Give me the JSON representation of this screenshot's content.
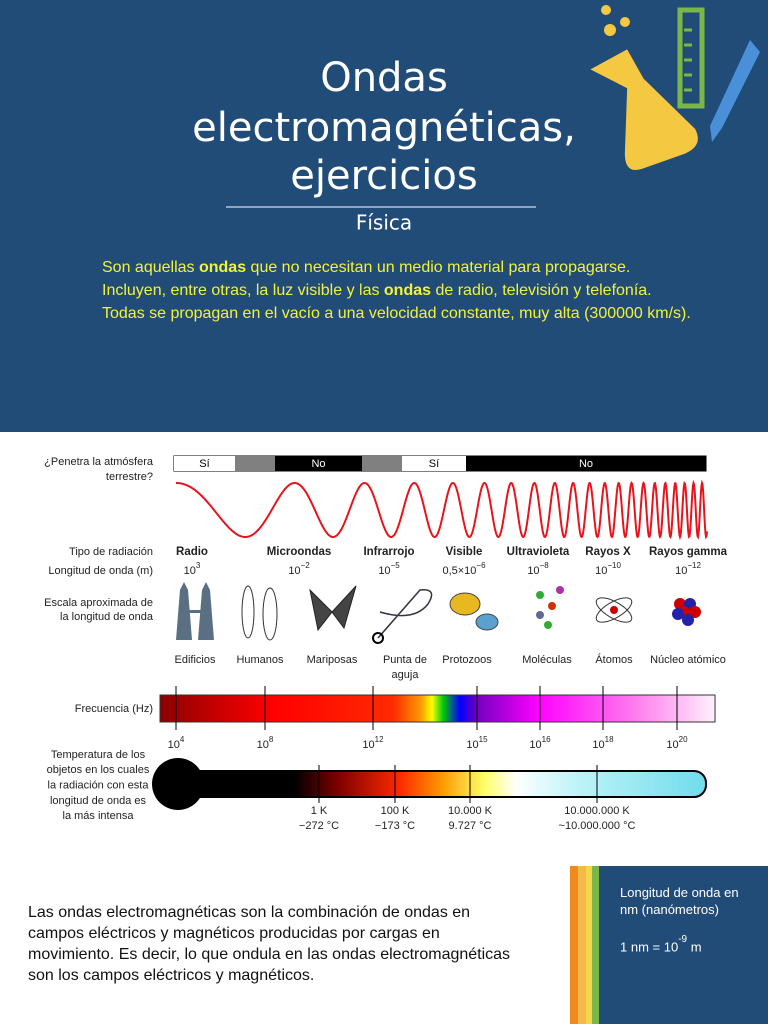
{
  "header": {
    "title_lines": [
      "Ondas",
      "electromagnéticas,",
      "ejercicios"
    ],
    "subtitle": "Física",
    "intro": [
      {
        "text": "Son aquellas "
      },
      {
        "text": "ondas",
        "bold": true
      },
      {
        "text": " que no necesitan un medio material para propagarse. Incluyen, entre otras, la luz visible y las "
      },
      {
        "text": "ondas",
        "bold": true
      },
      {
        "text": " de radio, televisión y telefonía. Todas se propagan en el vacío a una velocidad constante, muy alta (300000 km/s)."
      }
    ]
  },
  "spectrum": {
    "atmosphere_label": [
      "¿Penetra la atmósfera",
      "terrestre?"
    ],
    "atmosphere": [
      "Sí",
      "No",
      "Sí",
      "No"
    ],
    "radiation_type_label": "Tipo de radiación",
    "wavelength_label": "Longitud de onda (m)",
    "radiation": [
      {
        "name": "Radio",
        "base": "10",
        "exp": "3"
      },
      {
        "name": "Microondas",
        "base": "10",
        "exp": "−2"
      },
      {
        "name": "Infrarrojo",
        "base": "10",
        "exp": "−5"
      },
      {
        "name": "Visible",
        "base": "0,5×10",
        "exp": "−6"
      },
      {
        "name": "Ultravioleta",
        "base": "10",
        "exp": "−8"
      },
      {
        "name": "Rayos X",
        "base": "10",
        "exp": "−10"
      },
      {
        "name": "Rayos gamma",
        "base": "10",
        "exp": "−12"
      }
    ],
    "scale_label": [
      "Escala aproximada de",
      "la longitud de onda"
    ],
    "scale_items": [
      [
        "Edificios"
      ],
      [
        "Humanos"
      ],
      [
        "Mariposas"
      ],
      [
        "Punta de",
        "aguja"
      ],
      [
        "Protozoos"
      ],
      [
        "Moléculas"
      ],
      [
        "Átomos"
      ],
      [
        "Núcleo atómico"
      ]
    ],
    "frequency_label": "Frecuencia (Hz)",
    "frequency_ticks": [
      {
        "base": "10",
        "exp": "4"
      },
      {
        "base": "10",
        "exp": "8"
      },
      {
        "base": "10",
        "exp": "12"
      },
      {
        "base": "10",
        "exp": "15"
      },
      {
        "base": "10",
        "exp": "16"
      },
      {
        "base": "10",
        "exp": "18"
      },
      {
        "base": "10",
        "exp": "20"
      }
    ],
    "temperature_label": [
      "Temperatura de los",
      "objetos en los cuales",
      "la radiación con esta",
      "longitud de onda es",
      "la más intensa"
    ],
    "temperatures": [
      {
        "kelvin": "1 K",
        "celsius": "−272 °C"
      },
      {
        "kelvin": "100 K",
        "celsius": "−173 °C"
      },
      {
        "kelvin": "10.000 K",
        "celsius": "9.727 °C"
      },
      {
        "kelvin": "10.000.000 K",
        "celsius": "~10.000.000 °C"
      }
    ]
  },
  "body": {
    "paragraph": "Las ondas electromagnéticas son la combinación de ondas en campos eléctricos y magnéticos producidas por cargas en movimiento. Es decir, lo que ondula en las ondas electromagnéticas son los campos eléctricos y magnéticos."
  },
  "sidebar": {
    "heading": "Longitud de onda en nm (nanómetros)",
    "equation_base": "1 nm = 10",
    "equation_exp": "-9",
    "equation_unit": "m"
  }
}
